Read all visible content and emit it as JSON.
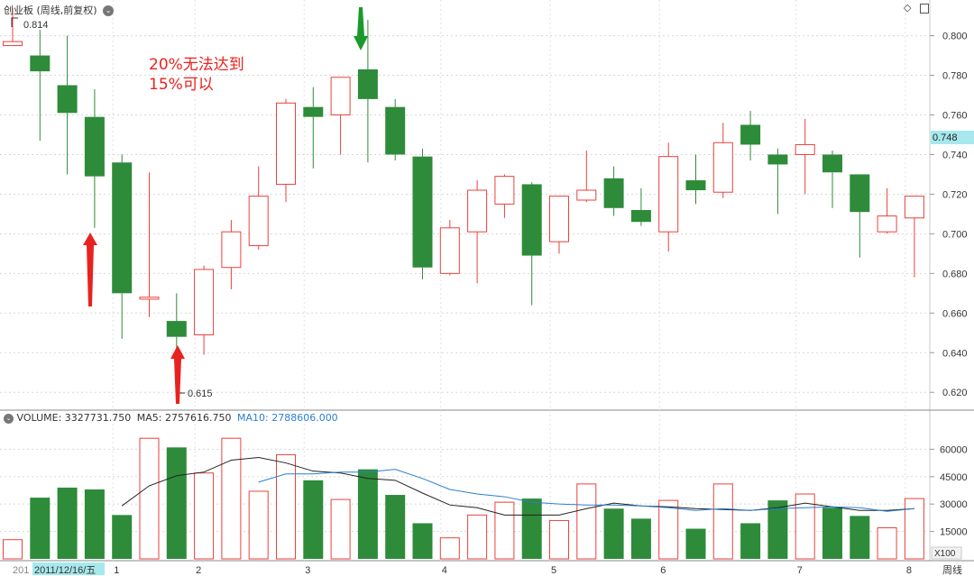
{
  "header": {
    "title": "创业板 (周线,前复权)",
    "tools": [
      "diamond-icon",
      "window-icon"
    ]
  },
  "annotation": {
    "line1": "20%无法达到",
    "line2": "15%可以"
  },
  "volume_header": {
    "label": "VOLUME:",
    "value": "3327731.750",
    "ma5_label": "MA5:",
    "ma5_value": "2757616.750",
    "ma10_label": "MA10:",
    "ma10_value": "2788606.000"
  },
  "price_axis": {
    "ticks": [
      "0.800",
      "0.780",
      "0.760",
      "0.740",
      "0.720",
      "0.700",
      "0.680",
      "0.660",
      "0.640",
      "0.620"
    ],
    "current": "0.748"
  },
  "volume_axis": {
    "ticks": [
      "60000",
      "45000",
      "30000",
      "15000"
    ],
    "unit": "X100"
  },
  "time_axis": {
    "labels": [
      "201",
      "2011/12/16/五",
      "1",
      "2",
      "3",
      "4",
      "5",
      "6",
      "7",
      "8"
    ],
    "period": "周线"
  },
  "markers": {
    "high": "0.814",
    "low": "0.615"
  },
  "colors": {
    "up": "#e8423d",
    "down": "#2e8b3a",
    "ma5": "#222222",
    "ma10": "#2a7fd0",
    "arrow_red": "#e8231f",
    "arrow_green": "#1a9a2a",
    "current_bg": "#a6e8ec"
  },
  "chart_data": {
    "type": "candlestick",
    "ylim": [
      0.611,
      0.818
    ],
    "candles": [
      {
        "o": 0.795,
        "h": 0.814,
        "l": 0.795,
        "c": 0.797
      },
      {
        "o": 0.79,
        "h": 0.803,
        "l": 0.747,
        "c": 0.782
      },
      {
        "o": 0.775,
        "h": 0.8,
        "l": 0.73,
        "c": 0.761
      },
      {
        "o": 0.759,
        "h": 0.773,
        "l": 0.703,
        "c": 0.729
      },
      {
        "o": 0.736,
        "h": 0.74,
        "l": 0.647,
        "c": 0.67
      },
      {
        "o": 0.667,
        "h": 0.731,
        "l": 0.658,
        "c": 0.668
      },
      {
        "o": 0.656,
        "h": 0.67,
        "l": 0.615,
        "c": 0.648
      },
      {
        "o": 0.649,
        "h": 0.684,
        "l": 0.639,
        "c": 0.682
      },
      {
        "o": 0.683,
        "h": 0.707,
        "l": 0.672,
        "c": 0.701
      },
      {
        "o": 0.694,
        "h": 0.734,
        "l": 0.692,
        "c": 0.719
      },
      {
        "o": 0.725,
        "h": 0.768,
        "l": 0.716,
        "c": 0.766
      },
      {
        "o": 0.764,
        "h": 0.774,
        "l": 0.733,
        "c": 0.759
      },
      {
        "o": 0.76,
        "h": 0.779,
        "l": 0.74,
        "c": 0.779
      },
      {
        "o": 0.783,
        "h": 0.808,
        "l": 0.736,
        "c": 0.768
      },
      {
        "o": 0.764,
        "h": 0.768,
        "l": 0.737,
        "c": 0.74
      },
      {
        "o": 0.739,
        "h": 0.743,
        "l": 0.677,
        "c": 0.683
      },
      {
        "o": 0.68,
        "h": 0.707,
        "l": 0.679,
        "c": 0.703
      },
      {
        "o": 0.701,
        "h": 0.727,
        "l": 0.675,
        "c": 0.722
      },
      {
        "o": 0.715,
        "h": 0.73,
        "l": 0.708,
        "c": 0.729
      },
      {
        "o": 0.725,
        "h": 0.726,
        "l": 0.664,
        "c": 0.689
      },
      {
        "o": 0.696,
        "h": 0.719,
        "l": 0.69,
        "c": 0.719
      },
      {
        "o": 0.717,
        "h": 0.742,
        "l": 0.716,
        "c": 0.722
      },
      {
        "o": 0.728,
        "h": 0.734,
        "l": 0.709,
        "c": 0.713
      },
      {
        "o": 0.712,
        "h": 0.723,
        "l": 0.704,
        "c": 0.706
      },
      {
        "o": 0.701,
        "h": 0.746,
        "l": 0.691,
        "c": 0.739
      },
      {
        "o": 0.727,
        "h": 0.74,
        "l": 0.715,
        "c": 0.722
      },
      {
        "o": 0.721,
        "h": 0.756,
        "l": 0.718,
        "c": 0.746
      },
      {
        "o": 0.755,
        "h": 0.762,
        "l": 0.737,
        "c": 0.745
      },
      {
        "o": 0.74,
        "h": 0.743,
        "l": 0.71,
        "c": 0.735
      },
      {
        "o": 0.74,
        "h": 0.758,
        "l": 0.72,
        "c": 0.745
      },
      {
        "o": 0.74,
        "h": 0.742,
        "l": 0.713,
        "c": 0.731
      },
      {
        "o": 0.73,
        "h": 0.73,
        "l": 0.688,
        "c": 0.711
      },
      {
        "o": 0.701,
        "h": 0.723,
        "l": 0.7,
        "c": 0.709
      },
      {
        "o": 0.708,
        "h": 0.719,
        "l": 0.678,
        "c": 0.719
      }
    ],
    "volume_ylim": [
      0,
      73000
    ],
    "volume": [
      10500,
      33500,
      39000,
      38000,
      24000,
      66000,
      61000,
      47000,
      66000,
      37000,
      57000,
      43000,
      32500,
      49000,
      35000,
      19500,
      11500,
      24000,
      31000,
      33000,
      21000,
      41000,
      27500,
      22000,
      32000,
      16500,
      41000,
      19500,
      32000,
      35500,
      28000,
      23500,
      17000,
      33000
    ],
    "ma5": [
      null,
      null,
      null,
      null,
      29000,
      40000,
      45500,
      47500,
      54000,
      55500,
      52500,
      48000,
      47000,
      44000,
      43000,
      36000,
      29500,
      28000,
      24000,
      24000,
      24000,
      27500,
      30500,
      29000,
      28500,
      27500,
      27000,
      26500,
      28000,
      30500,
      28500,
      26500,
      26500,
      27500
    ],
    "ma10": [
      null,
      null,
      null,
      null,
      null,
      null,
      null,
      null,
      null,
      42000,
      46500,
      46500,
      47500,
      47500,
      49000,
      44000,
      38000,
      35500,
      34000,
      31000,
      30000,
      29500,
      29500,
      29000,
      28000,
      26500,
      27500,
      26500,
      27500,
      28000,
      28500,
      28000,
      26000,
      27500
    ]
  }
}
